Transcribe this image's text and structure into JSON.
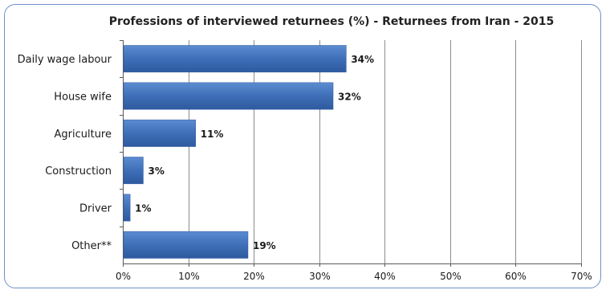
{
  "chart_data": {
    "type": "bar",
    "orientation": "horizontal",
    "title": "Professions of interviewed returnees (%) - Returnees from Iran - 2015",
    "categories": [
      "Daily wage labour",
      "House wife",
      "Agriculture",
      "Construction",
      "Driver",
      "Other**"
    ],
    "values": [
      34,
      32,
      11,
      3,
      1,
      19
    ],
    "value_labels": [
      "34%",
      "32%",
      "11%",
      "3%",
      "1%",
      "19%"
    ],
    "xlim": [
      0,
      70
    ],
    "xticks": [
      0,
      10,
      20,
      30,
      40,
      50,
      60,
      70
    ],
    "xtick_labels": [
      "0%",
      "10%",
      "20%",
      "30%",
      "40%",
      "50%",
      "60%",
      "70%"
    ],
    "grid": true,
    "bar_color": "#3f6fb8",
    "bar_color_light": "#5b8bd0",
    "bar_color_dark": "#2e5a9e",
    "frame_color": "#6f8fc9"
  }
}
